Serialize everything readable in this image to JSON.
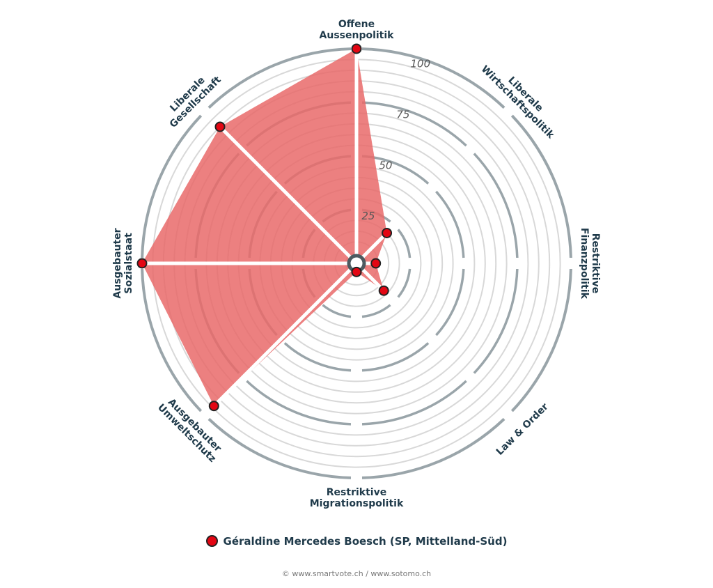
{
  "chart_data": {
    "type": "radar",
    "axes": [
      {
        "label": [
          "Offene",
          "Aussenpolitik"
        ],
        "value": 100
      },
      {
        "label": [
          "Liberale",
          "Wirtschaftspolitik"
        ],
        "value": 20
      },
      {
        "label": [
          "Restriktive",
          "Finanzpolitik"
        ],
        "value": 9
      },
      {
        "label": [
          "Law & Order"
        ],
        "value": 18
      },
      {
        "label": [
          "Restriktive",
          "Migrationspolitik"
        ],
        "value": 4
      },
      {
        "label": [
          "Ausgebauter",
          "Umweltschutz"
        ],
        "value": 94
      },
      {
        "label": [
          "Ausgebauter",
          "Sozialstaat"
        ],
        "value": 100
      },
      {
        "label": [
          "Liberale",
          "Gesellschaft"
        ],
        "value": 90
      }
    ],
    "ticks": [
      "25",
      "50",
      "75",
      "100"
    ],
    "range": [
      0,
      100
    ],
    "series_name": "Géraldine Mercedes Boesch (SP, Mittelland-Süd)",
    "colors": {
      "fill": "#e96a6a",
      "point": "#e30613",
      "ring": "#9aa5aa",
      "grid": "#d8d8d8"
    }
  },
  "legend": {
    "label": "Géraldine Mercedes Boesch (SP, Mittelland-Süd)"
  },
  "credit": "© www.smartvote.ch / www.sotomo.ch"
}
